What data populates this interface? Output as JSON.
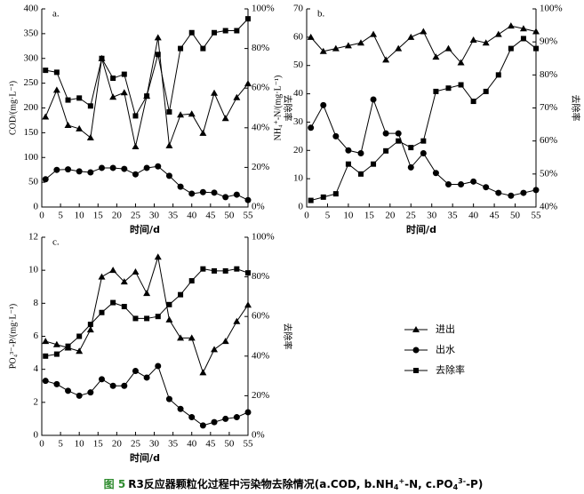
{
  "chart_data": [
    {
      "type": "line",
      "panel": "a.",
      "xlabel": "时间/d",
      "ylabel": "COD/(mg·L⁻¹)",
      "y2label": "去除率",
      "x": [
        1,
        4,
        7,
        10,
        13,
        16,
        19,
        22,
        25,
        28,
        31,
        34,
        37,
        40,
        43,
        46,
        49,
        52,
        55
      ],
      "xlim": [
        0,
        55
      ],
      "xticks": [
        0,
        5,
        10,
        15,
        20,
        25,
        30,
        35,
        40,
        45,
        50,
        55
      ],
      "ylim": [
        0,
        400
      ],
      "yticks": [
        0,
        50,
        100,
        150,
        200,
        250,
        300,
        350,
        400
      ],
      "y2lim": [
        0,
        100
      ],
      "y2ticks": [
        {
          "value": 0,
          "label": "0%"
        },
        {
          "value": 20,
          "label": "20%"
        },
        {
          "value": 40,
          "label": "40%"
        },
        {
          "value": 60,
          "label": "60%"
        },
        {
          "value": 80,
          "label": "80%"
        },
        {
          "value": 100,
          "label": "100%"
        }
      ],
      "series": [
        {
          "name": "进出",
          "color": "#000000",
          "marker": "triangle",
          "values": [
            182,
            236,
            165,
            158,
            140,
            300,
            222,
            231,
            122,
            224,
            342,
            124,
            186,
            188,
            149,
            230,
            179,
            221,
            249
          ]
        },
        {
          "name": "出水",
          "color": "#000000",
          "marker": "circle",
          "values": [
            56,
            75,
            76,
            72,
            70,
            79,
            79,
            77,
            66,
            79,
            82,
            63,
            41,
            27,
            30,
            29,
            20,
            25,
            14
          ]
        },
        {
          "name": "去除率",
          "color": "#000000",
          "marker": "square",
          "axis": "y2",
          "values": [
            69,
            68,
            54,
            55,
            51,
            75,
            65,
            67,
            46,
            56,
            77,
            48,
            80,
            88,
            80,
            88,
            89,
            89,
            95
          ]
        }
      ]
    },
    {
      "type": "line",
      "panel": "b.",
      "xlabel": "时间/d",
      "ylabel": "NH₄⁺-N/(mg·L⁻¹)",
      "y2label": "去除率",
      "x": [
        1,
        4,
        7,
        10,
        13,
        16,
        19,
        22,
        25,
        28,
        31,
        34,
        37,
        40,
        43,
        46,
        49,
        52,
        55
      ],
      "xlim": [
        0,
        55
      ],
      "xticks": [
        0,
        5,
        10,
        15,
        20,
        25,
        30,
        35,
        40,
        45,
        50,
        55
      ],
      "ylim": [
        0,
        70
      ],
      "yticks": [
        0,
        10,
        20,
        30,
        40,
        50,
        60,
        70
      ],
      "y2lim": [
        40,
        100
      ],
      "y2ticks": [
        {
          "value": 40,
          "label": "40%"
        },
        {
          "value": 50,
          "label": "50%"
        },
        {
          "value": 60,
          "label": "60%"
        },
        {
          "value": 70,
          "label": "70%"
        },
        {
          "value": 80,
          "label": "80%"
        },
        {
          "value": 90,
          "label": "90%"
        },
        {
          "value": 100,
          "label": "100%"
        }
      ],
      "series": [
        {
          "name": "进出",
          "color": "#000000",
          "marker": "triangle",
          "values": [
            60,
            55,
            56,
            57,
            58,
            61,
            52,
            56,
            60,
            62,
            53,
            56,
            51,
            59,
            58,
            61,
            64,
            63,
            62
          ]
        },
        {
          "name": "出水",
          "color": "#000000",
          "marker": "circle",
          "values": [
            28,
            36,
            25,
            20,
            19,
            38,
            26,
            26,
            14,
            19,
            12,
            8,
            8,
            9,
            7,
            5,
            4,
            5,
            6
          ]
        },
        {
          "name": "去除率",
          "color": "#000000",
          "marker": "square",
          "axis": "y2",
          "values": [
            42,
            43,
            44,
            53,
            50,
            53,
            57,
            60,
            58,
            60,
            75,
            76,
            77,
            72,
            75,
            80,
            88,
            91,
            88
          ]
        }
      ]
    },
    {
      "type": "line",
      "panel": "c.",
      "xlabel": "时间/d",
      "ylabel": "PO₄³⁻-P/(mg·L⁻¹)",
      "y2label": "去除率",
      "x": [
        1,
        4,
        7,
        10,
        13,
        16,
        19,
        22,
        25,
        28,
        31,
        34,
        37,
        40,
        43,
        46,
        49,
        52,
        55
      ],
      "xlim": [
        0,
        55
      ],
      "xticks": [
        0,
        5,
        10,
        15,
        20,
        25,
        30,
        35,
        40,
        45,
        50,
        55
      ],
      "ylim": [
        0,
        12
      ],
      "yticks": [
        0,
        2,
        4,
        6,
        8,
        10,
        12
      ],
      "y2lim": [
        0,
        100
      ],
      "y2ticks": [
        {
          "value": 0,
          "label": "0%"
        },
        {
          "value": 20,
          "label": "20%"
        },
        {
          "value": 40,
          "label": "40%"
        },
        {
          "value": 60,
          "label": "60%"
        },
        {
          "value": 80,
          "label": "80%"
        },
        {
          "value": 100,
          "label": "100%"
        }
      ],
      "series": [
        {
          "name": "进出",
          "color": "#000000",
          "marker": "triangle",
          "values": [
            5.7,
            5.5,
            5.3,
            5.1,
            6.4,
            9.6,
            10.0,
            9.3,
            9.9,
            8.6,
            10.8,
            7.0,
            5.9,
            5.9,
            3.8,
            5.2,
            5.7,
            6.9,
            7.9
          ]
        },
        {
          "name": "出水",
          "color": "#000000",
          "marker": "circle",
          "values": [
            3.3,
            3.1,
            2.7,
            2.4,
            2.6,
            3.4,
            3.0,
            3.0,
            3.9,
            3.5,
            4.2,
            2.2,
            1.6,
            1.1,
            0.6,
            0.8,
            1.0,
            1.1,
            1.4
          ]
        },
        {
          "name": "去除率",
          "color": "#000000",
          "marker": "square",
          "axis": "y2",
          "values": [
            40,
            41,
            45,
            50,
            56,
            62,
            67,
            65,
            59,
            59,
            60,
            66,
            71,
            78,
            84,
            83,
            83,
            84,
            82
          ]
        }
      ]
    }
  ],
  "caption": {
    "label": "图 5",
    "parts": [
      "R3反应器颗粒化过程中污染物去除情况(a.COD, b.NH",
      "4",
      "+",
      "-N, c.PO",
      "4",
      "3-",
      "-P)"
    ]
  }
}
